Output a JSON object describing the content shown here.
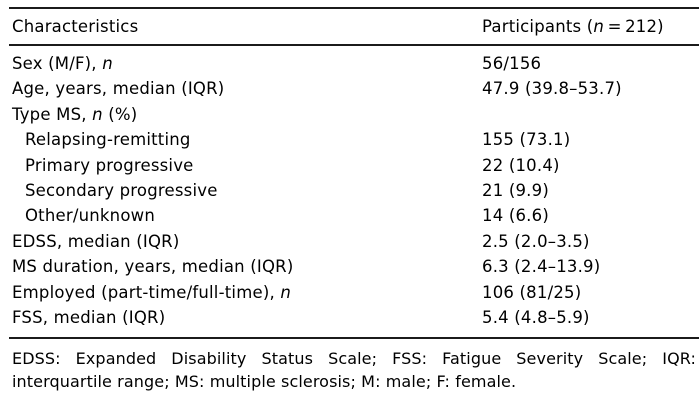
{
  "colors": {
    "background": "#ffffff",
    "text": "#000000",
    "rule": "#1b1b1b"
  },
  "table": {
    "header": {
      "characteristics": "Characteristics",
      "participants_pre": "Participants (",
      "participants_italic": "n",
      "participants_post": " = 212)"
    },
    "rows": [
      {
        "pre": "Sex (M/F), ",
        "it": "n",
        "post": "",
        "value": "56/156"
      },
      {
        "pre": "Age, years, median (IQR)",
        "it": "",
        "post": "",
        "value": "47.9 (39.8–53.7)"
      },
      {
        "pre": "Type MS, ",
        "it": "n",
        "post": " (%)",
        "value": ""
      },
      {
        "pre": "Relapsing-remitting",
        "it": "",
        "post": "",
        "value": "155 (73.1)"
      },
      {
        "pre": "Primary progressive",
        "it": "",
        "post": "",
        "value": "22 (10.4)"
      },
      {
        "pre": "Secondary progressive",
        "it": "",
        "post": "",
        "value": "21 (9.9)"
      },
      {
        "pre": "Other/unknown",
        "it": "",
        "post": "",
        "value": "14 (6.6)"
      },
      {
        "pre": "EDSS, median (IQR)",
        "it": "",
        "post": "",
        "value": "2.5 (2.0–3.5)"
      },
      {
        "pre": "MS duration, years, median (IQR)",
        "it": "",
        "post": "",
        "value": "6.3 (2.4–13.9)"
      },
      {
        "pre": "Employed (part-time/full-time), ",
        "it": "n",
        "post": "",
        "value": "106 (81/25)"
      },
      {
        "pre": "FSS, median (IQR)",
        "it": "",
        "post": "",
        "value": "5.4 (4.8–5.9)"
      }
    ]
  },
  "footnote": {
    "line1": "EDSS: Expanded Disability Status Scale; FSS: Fatigue Severity Scale; IQR:",
    "line2": "interquartile range; MS: multiple sclerosis; M: male; F: female."
  }
}
